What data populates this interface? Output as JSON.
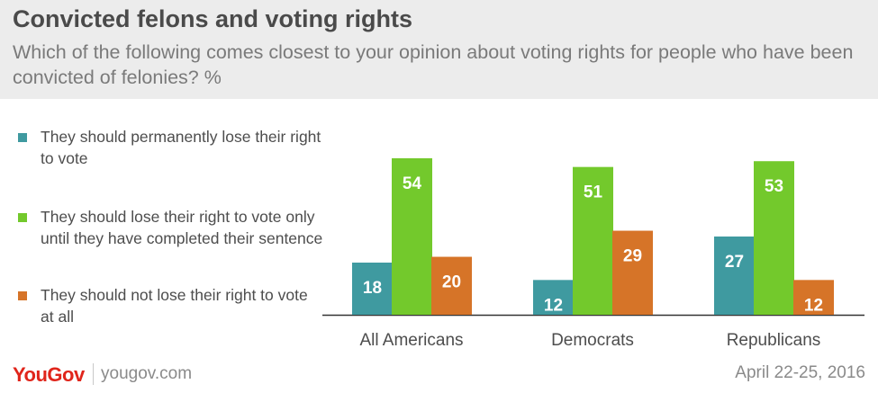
{
  "title": "Convicted felons and voting rights",
  "subtitle": "Which of the following comes closest to your opinion about voting rights for people who have been convicted of felonies? %",
  "colors": {
    "permanent": "#3f9aa0",
    "until_sentence": "#73c92c",
    "not_lose": "#d67428",
    "axis": "#333333",
    "header_bg": "#ececec"
  },
  "footer": {
    "logo": "YouGov",
    "url": "yougov.com",
    "date": "April 22-25, 2016"
  },
  "chart_data": {
    "type": "bar",
    "categories": [
      "All Americans",
      "Democrats",
      "Republicans"
    ],
    "series": [
      {
        "name": "They should permanently lose their right to vote",
        "color": "#3f9aa0",
        "values": [
          18,
          12,
          27
        ]
      },
      {
        "name": "They should lose their right to vote only until they have completed their sentence",
        "color": "#73c92c",
        "values": [
          54,
          51,
          53
        ]
      },
      {
        "name": "They should not lose their right to vote at all",
        "color": "#d67428",
        "values": [
          20,
          29,
          12
        ]
      }
    ],
    "ylim": [
      0,
      54
    ],
    "grid": false,
    "legend_position": "left"
  }
}
